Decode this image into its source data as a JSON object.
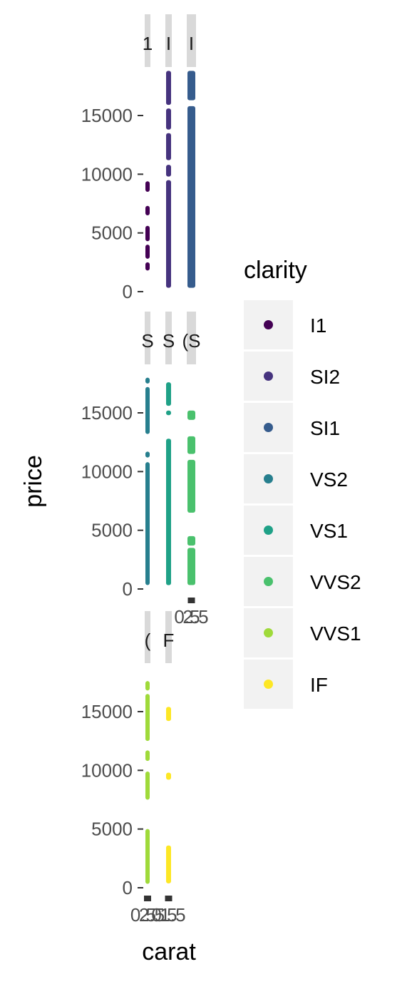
{
  "chart_data": {
    "type": "scatter",
    "xlabel": "carat",
    "ylabel": "price",
    "facet_by": "clarity",
    "facet_wrap": "3 columns by 3 rows, free x scales",
    "ylim": [
      0,
      19000
    ],
    "y_ticks": [
      0,
      5000,
      10000,
      15000
    ],
    "grid": false,
    "legend": {
      "title": "clarity",
      "position": "right",
      "entries": [
        {
          "label": "I1",
          "color": "#440154"
        },
        {
          "label": "SI2",
          "color": "#46337E"
        },
        {
          "label": "SI1",
          "color": "#365C8D"
        },
        {
          "label": "VS2",
          "color": "#277F8E"
        },
        {
          "label": "VS1",
          "color": "#1FA187"
        },
        {
          "label": "VVS2",
          "color": "#4AC16D"
        },
        {
          "label": "VVS1",
          "color": "#9FDA3A"
        },
        {
          "label": "IF",
          "color": "#FDE725"
        }
      ]
    },
    "panels": [
      {
        "strip_text": "1",
        "series": "I1",
        "color": "#440154",
        "row": 0,
        "col": 0,
        "y_segments": [
          [
            1800,
            2500
          ],
          [
            2800,
            4000
          ],
          [
            4300,
            5600
          ],
          [
            6500,
            7300
          ],
          [
            8500,
            9400
          ]
        ]
      },
      {
        "strip_text": "I",
        "series": "SI2",
        "color": "#46337E",
        "row": 0,
        "col": 1,
        "y_segments": [
          [
            326,
            9500
          ],
          [
            9800,
            10800
          ],
          [
            11200,
            13500
          ],
          [
            13800,
            15600
          ],
          [
            15900,
            18800
          ]
        ]
      },
      {
        "strip_text": "I",
        "series": "SI1",
        "color": "#365C8D",
        "row": 0,
        "col": 2,
        "y_segments": [
          [
            326,
            15800
          ],
          [
            16300,
            18800
          ]
        ]
      },
      {
        "strip_text": "S",
        "series": "VS2",
        "color": "#277F8E",
        "row": 1,
        "col": 0,
        "y_segments": [
          [
            334,
            10800
          ],
          [
            11200,
            11700
          ],
          [
            13200,
            17200
          ],
          [
            17500,
            18000
          ]
        ]
      },
      {
        "strip_text": "S",
        "series": "VS1",
        "color": "#1FA187",
        "row": 1,
        "col": 1,
        "y_segments": [
          [
            327,
            12800
          ],
          [
            14800,
            15200
          ],
          [
            15600,
            17600
          ]
        ]
      },
      {
        "strip_text": "(S",
        "series": "VVS2",
        "color": "#4AC16D",
        "row": 1,
        "col": 2,
        "y_segments": [
          [
            336,
            3500
          ],
          [
            3700,
            4500
          ],
          [
            6500,
            11000
          ],
          [
            11500,
            13000
          ],
          [
            14400,
            15200
          ]
        ]
      },
      {
        "strip_text": "(",
        "series": "VVS1",
        "color": "#9FDA3A",
        "row": 2,
        "col": 0,
        "y_segments": [
          [
            336,
            5000
          ],
          [
            7500,
            9900
          ],
          [
            10800,
            11700
          ],
          [
            12500,
            16500
          ],
          [
            16800,
            17600
          ]
        ]
      },
      {
        "strip_text": "F",
        "series": "IF",
        "color": "#FDE725",
        "row": 2,
        "col": 1,
        "y_segments": [
          [
            369,
            3600
          ],
          [
            9200,
            9800
          ],
          [
            14200,
            15400
          ]
        ]
      }
    ],
    "x_tick_labels": [
      {
        "after_row": 1,
        "col": 2,
        "text": "0.5"
      },
      {
        "after_row": 1,
        "col": 2,
        "text": "2.5"
      },
      {
        "after_row": 2,
        "col": 0,
        "text": "0.5"
      },
      {
        "after_row": 2,
        "col": 0,
        "text": "2.5"
      },
      {
        "after_row": 2,
        "col": 1,
        "text": "0.5"
      },
      {
        "after_row": 2,
        "col": 1,
        "text": "1.5"
      }
    ]
  }
}
